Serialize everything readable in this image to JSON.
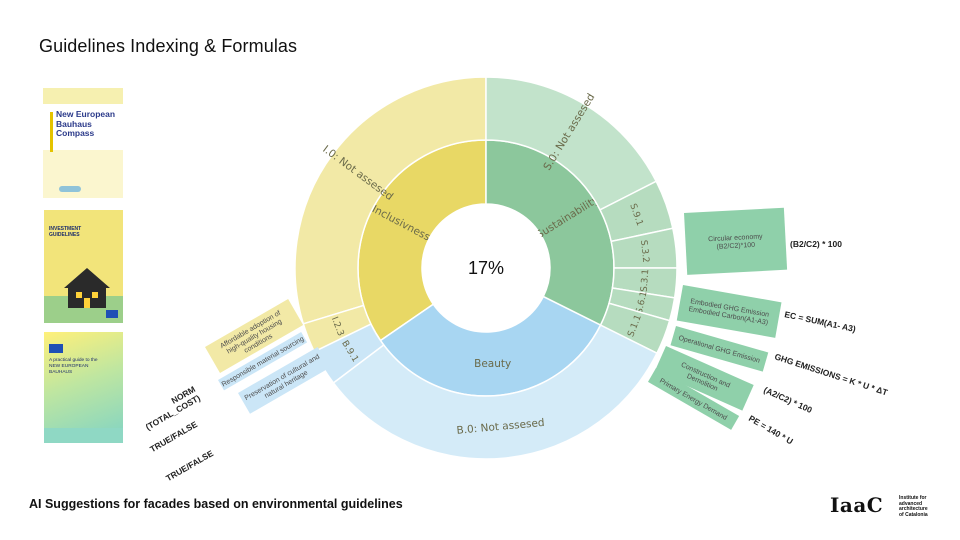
{
  "slide": {
    "title": "Guidelines Indexing & Formulas",
    "footer": "AI Suggestions for facades based on environmental guidelines"
  },
  "thumbnails": [
    {
      "title_lines": [
        "New European",
        "Bauhaus",
        "Compass"
      ]
    },
    {
      "title_lines": [
        "INVESTMENT",
        "GUIDELINES"
      ]
    },
    {
      "title_lines": [
        "A practical guide to the",
        "NEW EUROPEAN",
        "BAUHAUS"
      ]
    }
  ],
  "chart_data": {
    "type": "sunburst",
    "center_label": "17%",
    "inner_ring": [
      {
        "name": "Inclusivness",
        "color": "#e8d865"
      },
      {
        "name": "Sustainability",
        "color": "#8cc79c"
      },
      {
        "name": "Beauty",
        "color": "#a8d6f2"
      }
    ],
    "outer_ring": [
      {
        "name": "I.0: Not assesed",
        "parent": "Inclusivness",
        "color": "#f2e9a6"
      },
      {
        "name": "I.2.3",
        "parent": "Inclusivness",
        "color": "#f2e9a6"
      },
      {
        "name": "S.0: Not assesed",
        "parent": "Sustainability",
        "color": "#c2e3cb"
      },
      {
        "name": "S.9.1",
        "parent": "Sustainability",
        "color": "#b6dcbf"
      },
      {
        "name": "S.3.2",
        "parent": "Sustainability",
        "color": "#b6dcbf"
      },
      {
        "name": "S.3.1",
        "parent": "Sustainability",
        "color": "#b6dcbf"
      },
      {
        "name": "S.6.1",
        "parent": "Sustainability",
        "color": "#b6dcbf"
      },
      {
        "name": "S.1.1",
        "parent": "Sustainability",
        "color": "#b6dcbf"
      },
      {
        "name": "B.9.1",
        "parent": "Beauty",
        "color": "#cbe6f7"
      },
      {
        "name": "B.0: Not assesed",
        "parent": "Beauty",
        "color": "#d4ebf8"
      }
    ],
    "guideline_tags": [
      {
        "label": [
          "Affordable adoption of",
          "high-quality housing",
          "conditions"
        ],
        "formula": [
          "NORM",
          "(TOTAL_COST)"
        ],
        "color": "#f2e9a6"
      },
      {
        "label": [
          "Responsible material sourcing"
        ],
        "formula": [
          "TRUE/FALSE"
        ],
        "color": "#cbe6f7"
      },
      {
        "label": [
          "Preservation of cultural and",
          "natural heritage"
        ],
        "formula": [
          "TRUE/FALSE"
        ],
        "color": "#cbe6f7"
      },
      {
        "label": [
          "Circular economy",
          "(B2/C2)*100"
        ],
        "formula": [
          "(B2/C2) * 100"
        ],
        "color": "#8fd0aa"
      },
      {
        "label": [
          "Embodied GHG Emission",
          "Embodied Carbon(A1-A3)"
        ],
        "formula": [
          "EC = SUM(A1- A3)"
        ],
        "color": "#8fd0aa"
      },
      {
        "label": [
          "Operational GHG Emission"
        ],
        "formula": [
          "GHG EMISSIONS = K * U * ΔT"
        ],
        "color": "#8fd0aa"
      },
      {
        "label": [
          "Construction and",
          "Demolition"
        ],
        "formula": [
          "(A2/C2) * 100"
        ],
        "color": "#8fd0aa"
      },
      {
        "label": [
          "Primary Energy Demand"
        ],
        "formula": [
          "PE = 140 * U"
        ],
        "color": "#8fd0aa"
      }
    ]
  },
  "logo": {
    "mark": "IaaC",
    "subtitle": [
      "Institute for",
      "advanced",
      "architecture",
      "of Catalonia"
    ]
  }
}
